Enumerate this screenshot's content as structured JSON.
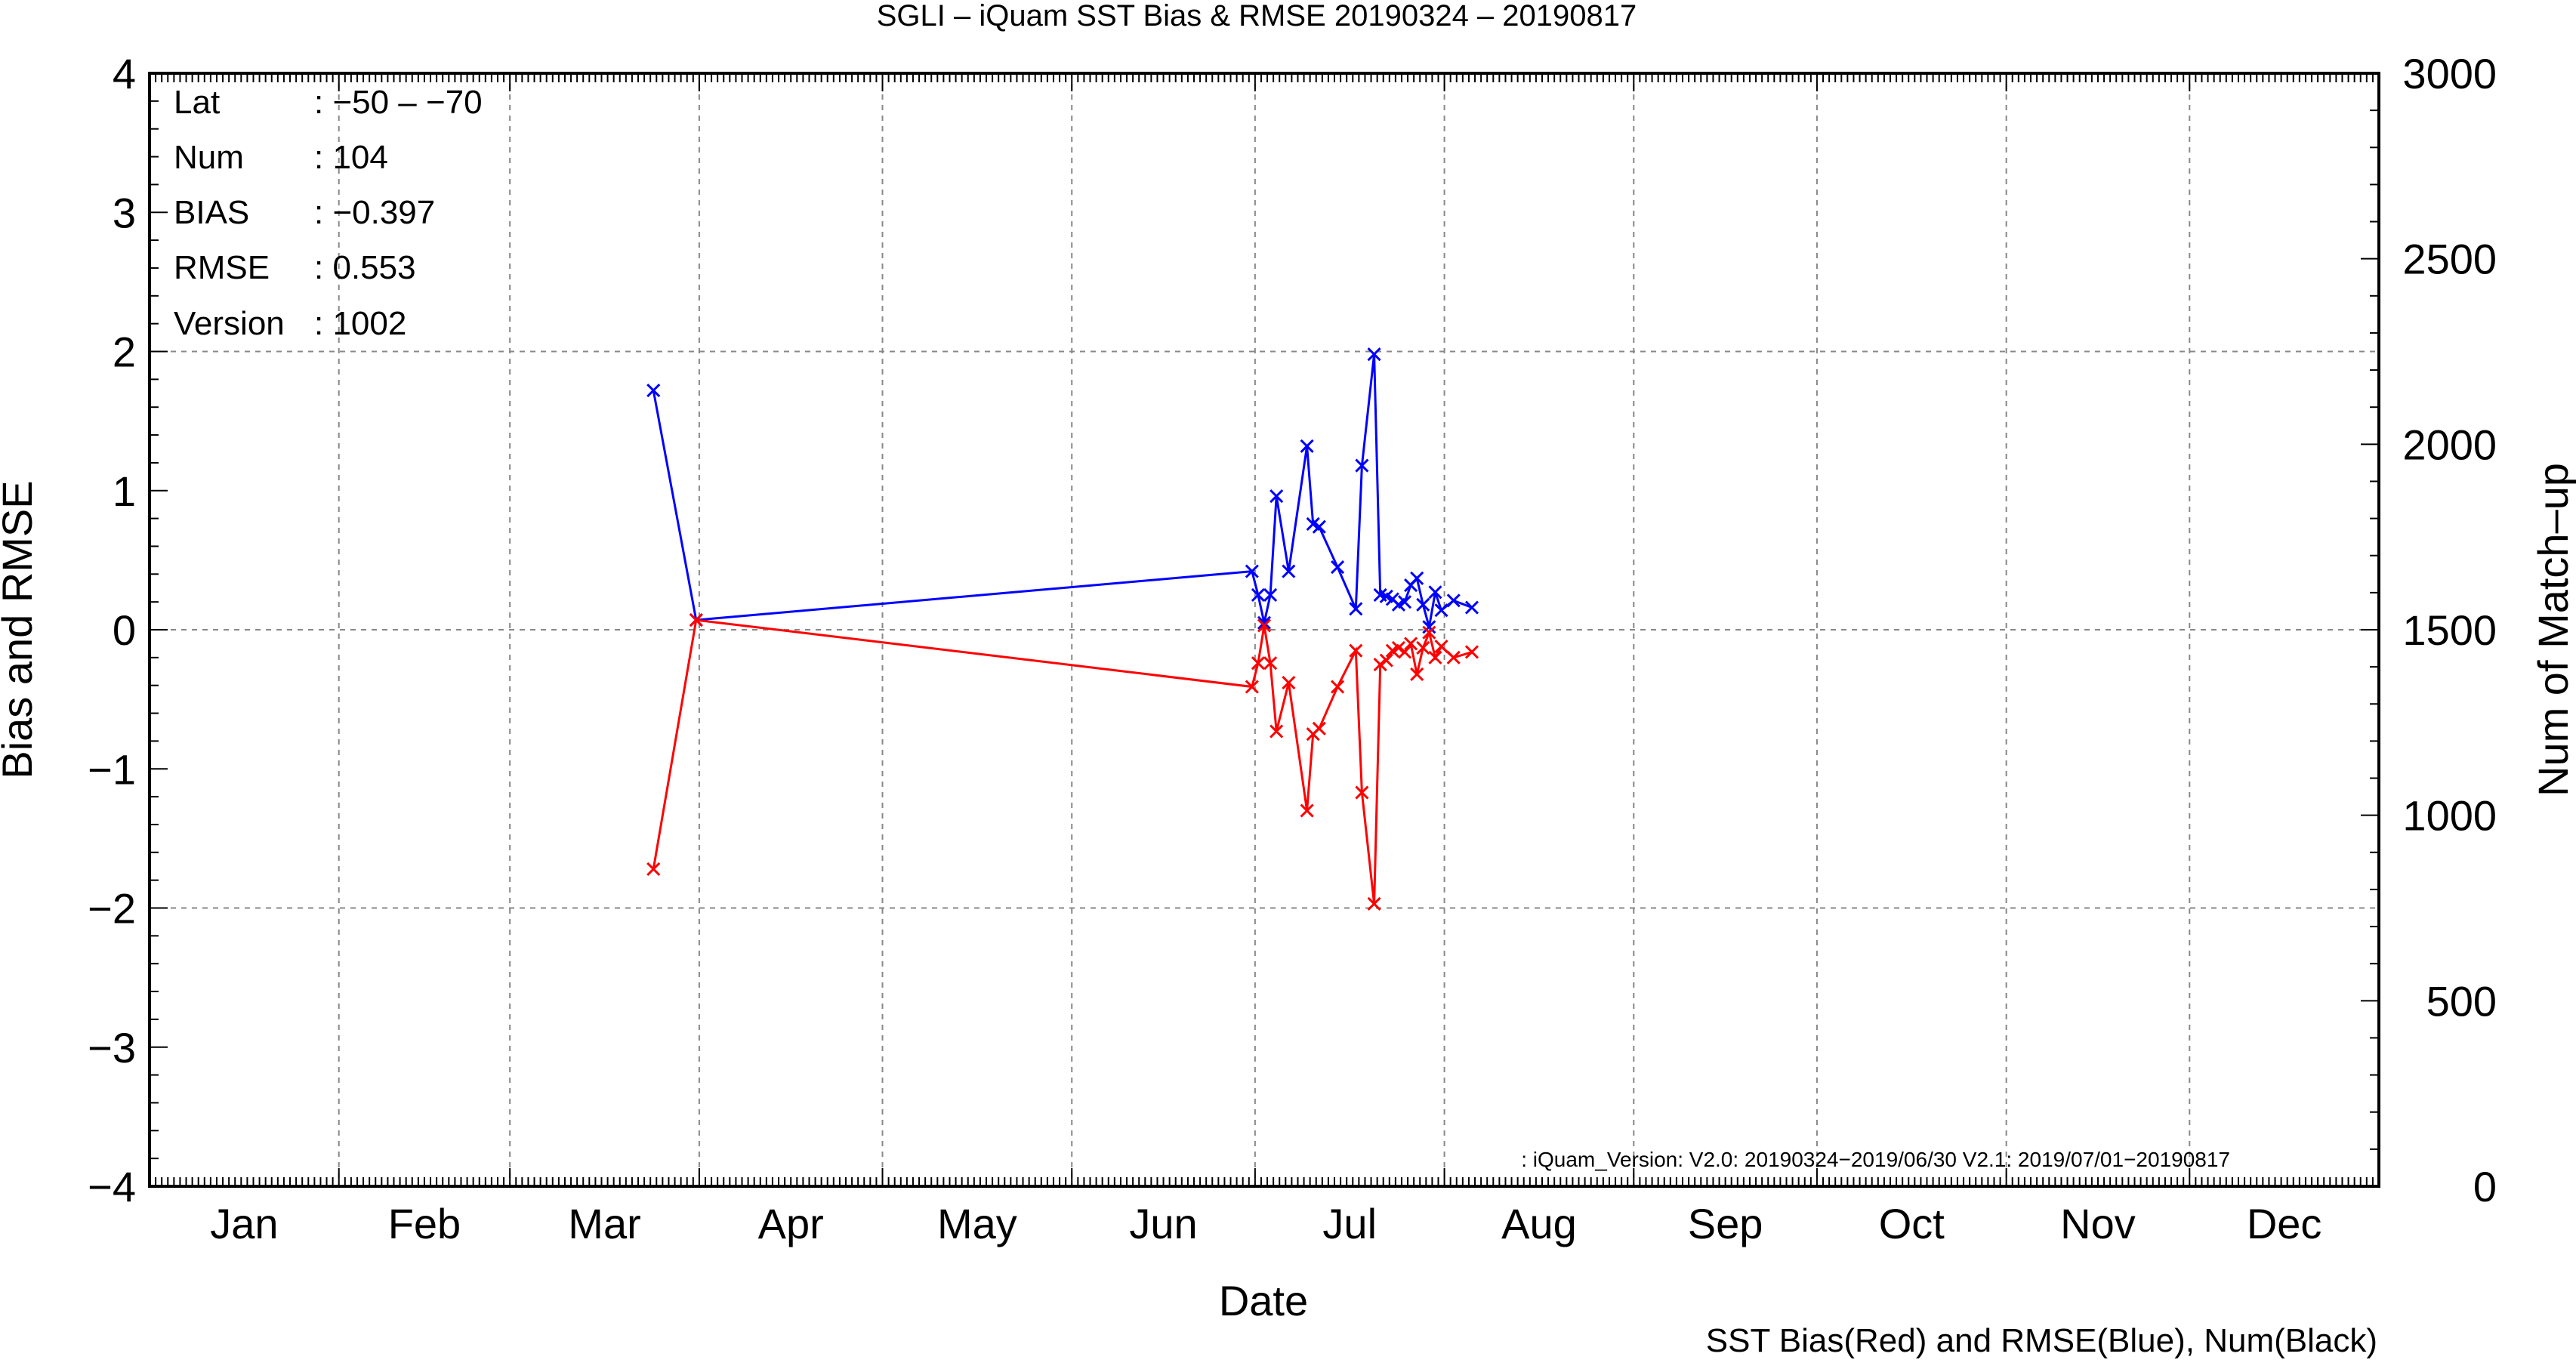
{
  "chart_data": {
    "type": "line",
    "title": "SGLI – iQuam  SST Bias & RMSE 20190324 – 20190817",
    "xlabel": "Date",
    "ylabel": "Bias and RMSE",
    "y2label": "Num of Match–up",
    "months": [
      "Jan",
      "Feb",
      "Mar",
      "Apr",
      "May",
      "Jun",
      "Jul",
      "Aug",
      "Sep",
      "Oct",
      "Nov",
      "Dec"
    ],
    "ylim": [
      -4,
      4
    ],
    "y2lim": [
      0,
      3000
    ],
    "yticks": [
      "4",
      "3",
      "2",
      "1",
      "0",
      "−1",
      "−2",
      "−3",
      "−4"
    ],
    "y2ticks": [
      "3000",
      "2500",
      "2000",
      "1500",
      "1000",
      "500",
      "0"
    ],
    "grid": true,
    "x_dates": [
      "2019-03-24",
      "2019-03-31",
      "2019-06-30",
      "2019-07-01",
      "2019-07-02",
      "2019-07-03",
      "2019-07-04",
      "2019-07-06",
      "2019-07-09",
      "2019-07-10",
      "2019-07-11",
      "2019-07-14",
      "2019-07-17",
      "2019-07-18",
      "2019-07-20",
      "2019-07-21",
      "2019-07-22",
      "2019-07-23",
      "2019-07-24",
      "2019-07-25",
      "2019-07-26",
      "2019-07-27",
      "2019-07-28",
      "2019-07-29",
      "2019-07-30",
      "2019-07-31",
      "2019-08-02",
      "2019-08-05"
    ],
    "series": [
      {
        "name": "RMSE",
        "color": "#0000ff",
        "values": [
          1.72,
          0.07,
          0.42,
          0.25,
          0.05,
          0.25,
          0.96,
          0.42,
          1.32,
          0.76,
          0.74,
          0.45,
          0.15,
          1.18,
          1.98,
          0.25,
          0.24,
          0.22,
          0.18,
          0.2,
          0.32,
          0.37,
          0.18,
          0.02,
          0.27,
          0.14,
          0.21,
          0.16
        ]
      },
      {
        "name": "Bias",
        "color": "#ff0000",
        "values": [
          -1.72,
          0.07,
          -0.41,
          -0.24,
          0.03,
          -0.24,
          -0.73,
          -0.38,
          -1.3,
          -0.75,
          -0.71,
          -0.41,
          -0.15,
          -1.17,
          -1.97,
          -0.25,
          -0.22,
          -0.15,
          -0.13,
          -0.16,
          -0.1,
          -0.32,
          -0.13,
          -0.02,
          -0.2,
          -0.12,
          -0.2,
          -0.16
        ]
      }
    ],
    "info_box": {
      "lat_label": "Lat",
      "lat_value": ": −50 – −70",
      "num_label": "Num",
      "num_value": ": 104",
      "bias_label": "BIAS",
      "bias_value": ": −0.397",
      "rmse_label": "RMSE",
      "rmse_value": ": 0.553",
      "version_label": "Version",
      "version_value": ": 1002"
    },
    "version_note": ": iQuam_Version: V2.0: 20190324−2019/06/30 V2.1: 2019/07/01−20190817",
    "legend_note": "SST Bias(Red) and RMSE(Blue), Num(Black)"
  }
}
